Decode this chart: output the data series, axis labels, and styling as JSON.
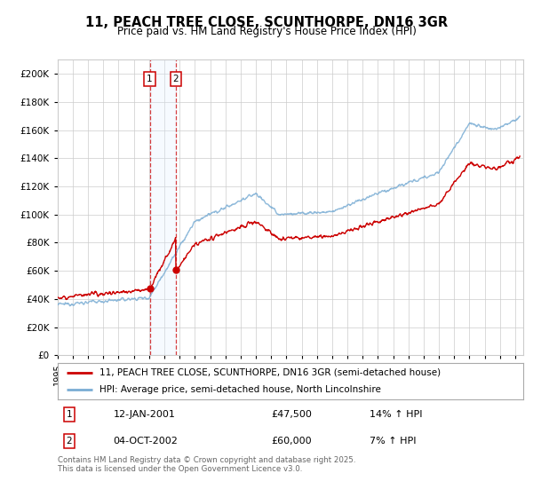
{
  "title": "11, PEACH TREE CLOSE, SCUNTHORPE, DN16 3GR",
  "subtitle": "Price paid vs. HM Land Registry's House Price Index (HPI)",
  "legend_line1": "11, PEACH TREE CLOSE, SCUNTHORPE, DN16 3GR (semi-detached house)",
  "legend_line2": "HPI: Average price, semi-detached house, North Lincolnshire",
  "sale1_date": "12-JAN-2001",
  "sale1_price": "£47,500",
  "sale1_hpi": "14% ↑ HPI",
  "sale1_date_num": 2001.04,
  "sale1_price_val": 47500,
  "sale2_date": "04-OCT-2002",
  "sale2_price": "£60,000",
  "sale2_hpi": "7% ↑ HPI",
  "sale2_date_num": 2002.75,
  "sale2_price_val": 60000,
  "xmin": 1995,
  "xmax": 2025.5,
  "ymin": 0,
  "ymax": 210000,
  "yticks": [
    0,
    20000,
    40000,
    60000,
    80000,
    100000,
    120000,
    140000,
    160000,
    180000,
    200000
  ],
  "ytick_labels": [
    "£0",
    "£20K",
    "£40K",
    "£60K",
    "£80K",
    "£100K",
    "£120K",
    "£140K",
    "£160K",
    "£180K",
    "£200K"
  ],
  "red_color": "#cc0000",
  "blue_color": "#7aadd4",
  "background_color": "#ffffff",
  "grid_color": "#cccccc",
  "shade_color": "#ddeeff",
  "footnote": "Contains HM Land Registry data © Crown copyright and database right 2025.\nThis data is licensed under the Open Government Licence v3.0."
}
